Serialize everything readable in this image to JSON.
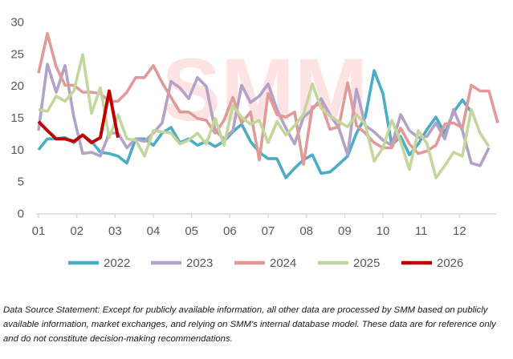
{
  "chart_data": {
    "type": "line",
    "title": "",
    "xlabel": "",
    "ylabel": "",
    "ylim": [
      0,
      30
    ],
    "yticks": [
      "0",
      "5",
      "10",
      "15",
      "20",
      "25",
      "30"
    ],
    "x_unit": "week of year",
    "xticks": [
      "01",
      "02",
      "03",
      "04",
      "05",
      "06",
      "07",
      "08",
      "09",
      "10",
      "11",
      "12"
    ],
    "grid": false,
    "legend": "bottom",
    "watermark": "SMM",
    "series": [
      {
        "name": "2022",
        "color": "#4bacc6",
        "values": [
          10.0,
          11.7,
          11.7,
          11.9,
          11.1,
          12.3,
          11.3,
          9.6,
          9.4,
          9.0,
          7.9,
          11.7,
          11.7,
          10.7,
          12.6,
          13.5,
          11.1,
          11.7,
          10.7,
          11.3,
          10.5,
          11.3,
          12.8,
          14.0,
          11.3,
          9.6,
          8.6,
          8.6,
          5.6,
          7.1,
          8.4,
          9.2,
          6.3,
          6.5,
          7.7,
          9.0,
          12.6,
          15.1,
          22.4,
          18.8,
          10.7,
          12.1,
          9.2,
          10.9,
          13.2,
          15.1,
          12.6,
          15.9,
          17.8,
          15.9
        ]
      },
      {
        "name": "2023",
        "color": "#b3a2c7",
        "values": [
          13.0,
          23.4,
          19.0,
          23.2,
          15.1,
          9.4,
          9.6,
          9.0,
          12.6,
          12.6,
          10.3,
          11.7,
          11.3,
          12.6,
          14.2,
          20.7,
          19.7,
          18.0,
          21.3,
          19.9,
          13.0,
          11.7,
          13.0,
          20.1,
          17.4,
          18.4,
          20.3,
          16.3,
          13.4,
          10.9,
          15.1,
          16.3,
          18.0,
          15.5,
          13.4,
          9.2,
          19.5,
          13.8,
          12.8,
          11.5,
          10.7,
          15.5,
          13.0,
          11.9,
          12.1,
          14.2,
          11.7,
          16.3,
          13.0,
          7.9,
          7.5,
          10.3
        ]
      },
      {
        "name": "2024",
        "color": "#e29a98",
        "values": [
          22.0,
          28.2,
          23.0,
          20.1,
          20.1,
          19.0,
          19.0,
          18.8,
          17.6,
          17.6,
          19.0,
          21.3,
          21.3,
          23.2,
          20.5,
          18.2,
          15.9,
          15.9,
          14.9,
          14.6,
          12.6,
          14.6,
          18.2,
          14.2,
          15.9,
          8.4,
          18.8,
          15.5,
          15.1,
          15.9,
          7.7,
          16.7,
          17.2,
          13.2,
          13.6,
          20.5,
          13.8,
          12.6,
          11.1,
          10.3,
          10.3,
          13.4,
          10.9,
          9.4,
          9.8,
          10.7,
          14.0,
          14.2,
          13.4,
          20.1,
          19.2,
          19.2,
          14.2
        ]
      },
      {
        "name": "2025",
        "color": "#c3d69b",
        "values": [
          16.3,
          16.0,
          18.4,
          17.6,
          19.2,
          24.9,
          15.7,
          19.7,
          11.9,
          15.5,
          11.7,
          11.5,
          9.0,
          13.0,
          12.8,
          12.6,
          10.9,
          11.5,
          12.6,
          10.9,
          14.9,
          10.7,
          16.9,
          15.1,
          14.0,
          14.6,
          11.1,
          14.4,
          12.3,
          13.8,
          15.5,
          20.3,
          16.5,
          15.3,
          14.4,
          13.6,
          15.5,
          14.0,
          8.2,
          10.3,
          14.6,
          11.3,
          6.9,
          13.0,
          10.9,
          5.6,
          7.5,
          9.6,
          9.0,
          16.3,
          12.6,
          10.5
        ]
      },
      {
        "name": "2026",
        "color": "#c00000",
        "values": [
          14.4,
          13.0,
          11.7,
          11.7,
          11.3,
          12.3,
          11.1,
          11.9,
          19.2,
          11.9
        ]
      }
    ]
  },
  "note": "Data Source Statement: Except for publicly available information, all other data are processed by SMM based on publicly available information, market exchanges, and relying on SMM's internal database model. These data are for reference only and do not constitute decision-making recommendations."
}
